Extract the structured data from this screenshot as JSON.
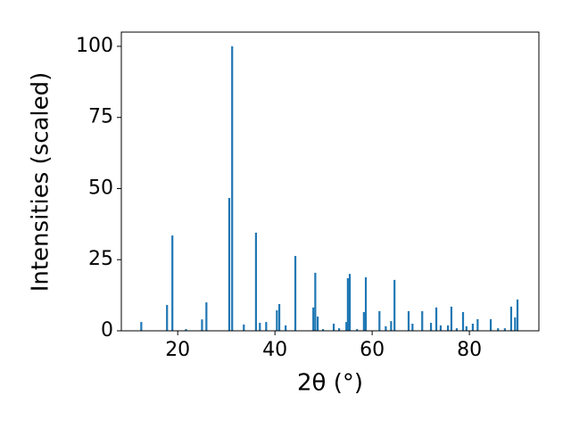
{
  "chart_data": {
    "type": "bar",
    "xlabel": "2θ (°)",
    "ylabel": "Intensities (scaled)",
    "x": [
      12.5,
      17.8,
      18.9,
      21.7,
      25.0,
      25.9,
      30.6,
      31.2,
      33.6,
      36.1,
      36.9,
      38.2,
      40.4,
      40.9,
      42.2,
      44.2,
      47.9,
      48.3,
      48.8,
      49.9,
      52.1,
      53.2,
      54.7,
      55.0,
      55.4,
      56.9,
      58.3,
      58.7,
      61.5,
      62.8,
      63.9,
      64.6,
      67.5,
      68.3,
      70.3,
      72.1,
      73.2,
      74.1,
      75.6,
      76.3,
      77.4,
      78.7,
      79.4,
      80.7,
      81.7,
      84.4,
      85.9,
      87.3,
      88.6,
      89.4,
      89.9
    ],
    "values": [
      3.1,
      9.1,
      33.5,
      0.6,
      4.0,
      10.0,
      46.7,
      100,
      2.2,
      34.5,
      2.8,
      3.1,
      7.2,
      9.4,
      1.9,
      26.3,
      8.2,
      20.4,
      5.0,
      0.6,
      2.5,
      0.9,
      3.1,
      18.5,
      20.0,
      0.6,
      6.6,
      18.8,
      6.9,
      1.6,
      3.4,
      17.9,
      6.9,
      2.5,
      6.9,
      2.8,
      8.2,
      1.9,
      1.9,
      8.5,
      0.9,
      6.6,
      1.6,
      2.5,
      4.1,
      4.1,
      0.9,
      0.9,
      8.5,
      4.7,
      11.0
    ],
    "color": "#1f77b4",
    "xlim": [
      8.4,
      94.3
    ],
    "ylim": [
      0,
      105
    ],
    "xticks": [
      20,
      40,
      60,
      80
    ],
    "yticks": [
      0,
      25,
      50,
      75,
      100
    ]
  }
}
